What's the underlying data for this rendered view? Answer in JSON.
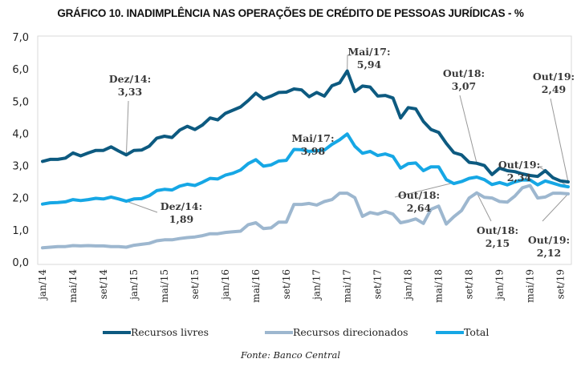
{
  "chart_data": {
    "type": "line",
    "title": "GRÁFICO 10. INADIMPLÊNCIA NAS OPERAÇÕES DE CRÉDITO DE PESSOAS JURÍDICAS - %",
    "source": "Fonte: Banco Central",
    "xlabel": "",
    "ylabel": "",
    "ylim": [
      0,
      7
    ],
    "yticks": [
      "0,0",
      "1,0",
      "2,0",
      "3,0",
      "4,0",
      "5,0",
      "6,0",
      "7,0"
    ],
    "ytick_values": [
      0,
      1,
      2,
      3,
      4,
      5,
      6,
      7
    ],
    "x_start": "jan/14",
    "x_count": 70,
    "xticks": [
      {
        "index": 0,
        "label": "jan/14"
      },
      {
        "index": 4,
        "label": "mai/14"
      },
      {
        "index": 8,
        "label": "set/14"
      },
      {
        "index": 12,
        "label": "jan/15"
      },
      {
        "index": 16,
        "label": "mai/15"
      },
      {
        "index": 20,
        "label": "set/15"
      },
      {
        "index": 24,
        "label": "jan/16"
      },
      {
        "index": 28,
        "label": "mai/16"
      },
      {
        "index": 32,
        "label": "set/16"
      },
      {
        "index": 36,
        "label": "jan/17"
      },
      {
        "index": 40,
        "label": "mai/17"
      },
      {
        "index": 44,
        "label": "set/17"
      },
      {
        "index": 48,
        "label": "jan/18"
      },
      {
        "index": 52,
        "label": "mai/18"
      },
      {
        "index": 56,
        "label": "set/18"
      },
      {
        "index": 60,
        "label": "jan/19"
      },
      {
        "index": 64,
        "label": "mai/19"
      },
      {
        "index": 68,
        "label": "set/19"
      }
    ],
    "grid": false,
    "legend_position": "bottom",
    "series": [
      {
        "name": "Recursos livres",
        "color": "#0d5a80",
        "values": [
          3.13,
          3.19,
          3.19,
          3.23,
          3.39,
          3.3,
          3.39,
          3.47,
          3.47,
          3.58,
          3.45,
          3.33,
          3.47,
          3.48,
          3.6,
          3.85,
          3.91,
          3.87,
          4.1,
          4.22,
          4.12,
          4.26,
          4.48,
          4.42,
          4.62,
          4.72,
          4.82,
          5.02,
          5.25,
          5.07,
          5.16,
          5.27,
          5.28,
          5.38,
          5.35,
          5.14,
          5.27,
          5.16,
          5.48,
          5.57,
          5.94,
          5.3,
          5.47,
          5.44,
          5.16,
          5.18,
          5.1,
          4.48,
          4.8,
          4.76,
          4.37,
          4.12,
          4.03,
          3.69,
          3.4,
          3.33,
          3.1,
          3.07,
          3.0,
          2.72,
          2.92,
          2.84,
          2.81,
          2.74,
          2.69,
          2.66,
          2.84,
          2.62,
          2.52,
          2.49
        ]
      },
      {
        "name": "Recursos direcionados",
        "color": "#9db7cf",
        "values": [
          0.44,
          0.46,
          0.48,
          0.48,
          0.51,
          0.5,
          0.51,
          0.5,
          0.5,
          0.48,
          0.48,
          0.46,
          0.52,
          0.55,
          0.58,
          0.66,
          0.69,
          0.69,
          0.73,
          0.76,
          0.78,
          0.82,
          0.88,
          0.88,
          0.92,
          0.94,
          0.96,
          1.16,
          1.22,
          1.04,
          1.06,
          1.24,
          1.24,
          1.79,
          1.79,
          1.82,
          1.77,
          1.88,
          1.94,
          2.14,
          2.14,
          2.0,
          1.42,
          1.54,
          1.49,
          1.57,
          1.49,
          1.22,
          1.27,
          1.34,
          1.2,
          1.64,
          1.74,
          1.18,
          1.41,
          1.6,
          1.99,
          2.15,
          2.01,
          1.99,
          1.88,
          1.86,
          2.05,
          2.31,
          2.38,
          1.99,
          2.02,
          2.14,
          2.14,
          2.12
        ]
      },
      {
        "name": "Total",
        "color": "#16a7e5",
        "values": [
          1.8,
          1.84,
          1.85,
          1.87,
          1.94,
          1.91,
          1.94,
          1.98,
          1.96,
          2.02,
          1.96,
          1.89,
          1.96,
          1.97,
          2.06,
          2.22,
          2.26,
          2.24,
          2.36,
          2.42,
          2.38,
          2.48,
          2.6,
          2.58,
          2.7,
          2.76,
          2.86,
          3.06,
          3.18,
          2.98,
          3.02,
          3.14,
          3.16,
          3.5,
          3.49,
          3.44,
          3.46,
          3.48,
          3.66,
          3.8,
          3.98,
          3.6,
          3.38,
          3.44,
          3.31,
          3.36,
          3.28,
          2.92,
          3.06,
          3.08,
          2.84,
          2.96,
          2.96,
          2.56,
          2.44,
          2.5,
          2.6,
          2.64,
          2.56,
          2.41,
          2.47,
          2.4,
          2.49,
          2.55,
          2.55,
          2.4,
          2.52,
          2.45,
          2.38,
          2.34
        ]
      }
    ],
    "annotations": [
      {
        "series": 0,
        "index": 11,
        "label": "Dez/14:",
        "value": "3,33"
      },
      {
        "series": 0,
        "index": 40,
        "label": "Mai/17:",
        "value": "5,94"
      },
      {
        "series": 0,
        "index": 57,
        "label": "Out/18:",
        "value": "3,07"
      },
      {
        "series": 0,
        "index": 69,
        "label": "Out/19:",
        "value": "2,49"
      },
      {
        "series": 2,
        "index": 11,
        "label": "Dez/14:",
        "value": "1,89"
      },
      {
        "series": 2,
        "index": 40,
        "label": "Mai/17:",
        "value": "3,98"
      },
      {
        "series": 2,
        "index": 57,
        "label": "Out/18:",
        "value": "2,64"
      },
      {
        "series": 2,
        "index": 69,
        "label": "Out/19:",
        "value": "2,34"
      },
      {
        "series": 1,
        "index": 57,
        "label": "Out/18:",
        "value": "2,15"
      },
      {
        "series": 1,
        "index": 69,
        "label": "Out/19:",
        "value": "2,12"
      }
    ]
  }
}
